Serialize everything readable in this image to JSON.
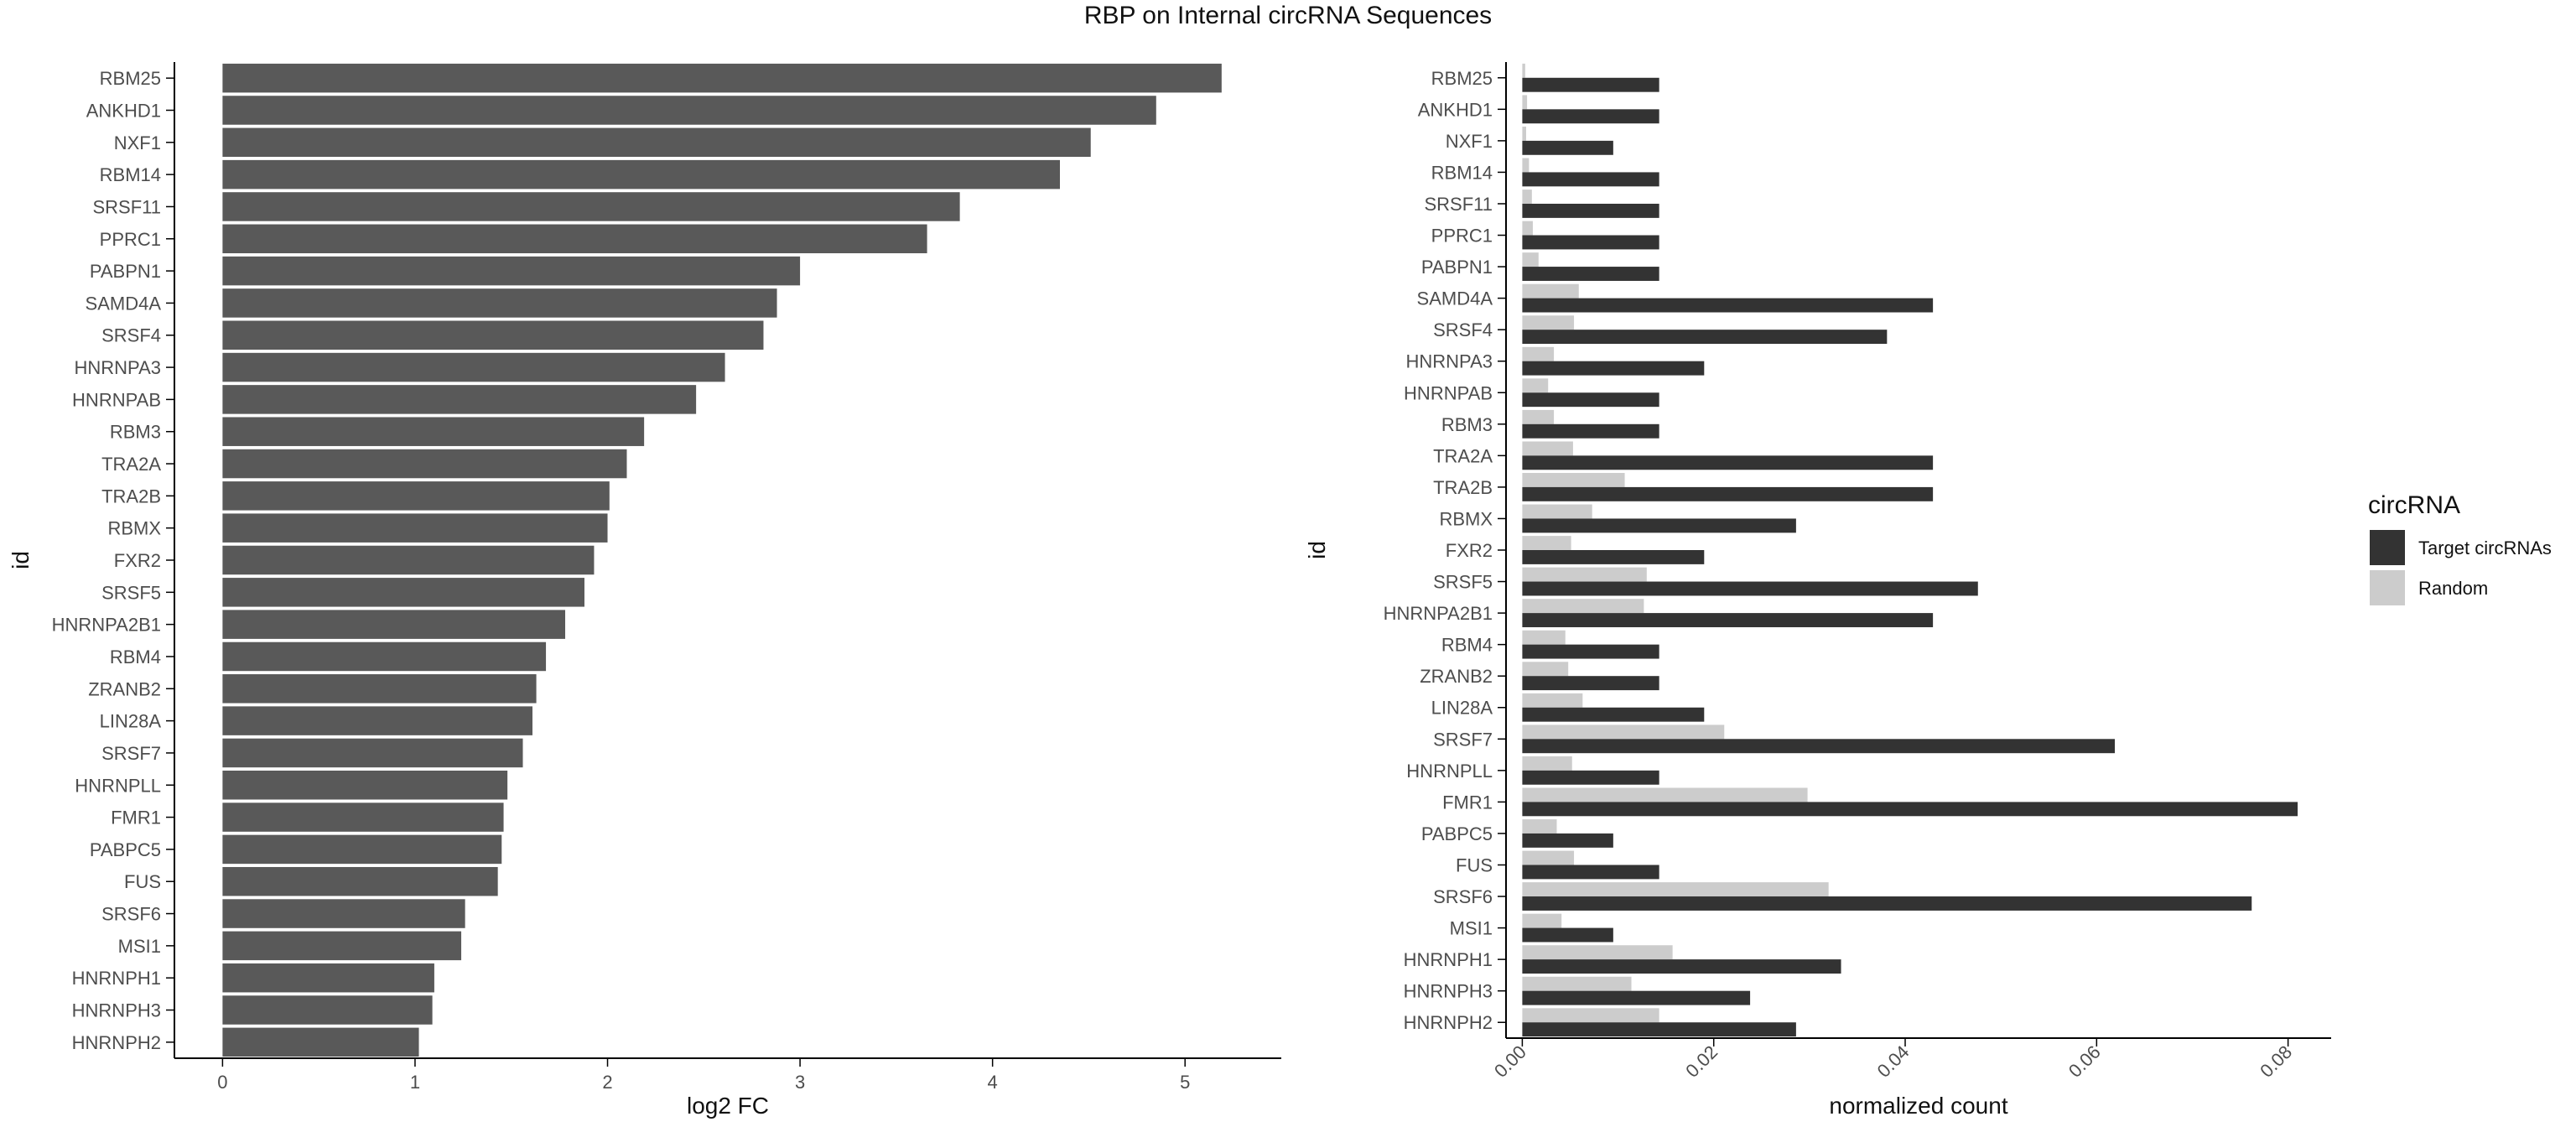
{
  "page": {
    "title": "RBP on Internal circRNA Sequences"
  },
  "colors": {
    "bar_left": "#595959",
    "target": "#333333",
    "random": "#cccccc",
    "axis": "#000000"
  },
  "chart_data": [
    {
      "type": "bar",
      "orientation": "horizontal",
      "categories": [
        "RBM25",
        "ANKHD1",
        "NXF1",
        "RBM14",
        "SRSF11",
        "PPRC1",
        "PABPN1",
        "SAMD4A",
        "SRSF4",
        "HNRNPA3",
        "HNRNPAB",
        "RBM3",
        "TRA2A",
        "TRA2B",
        "RBMX",
        "FXR2",
        "SRSF5",
        "HNRNPA2B1",
        "RBM4",
        "ZRANB2",
        "LIN28A",
        "SRSF7",
        "HNRNPLL",
        "FMR1",
        "PABPC5",
        "FUS",
        "SRSF6",
        "MSI1",
        "HNRNPH1",
        "HNRNPH3",
        "HNRNPH2"
      ],
      "values": [
        5.19,
        4.85,
        4.51,
        4.35,
        3.83,
        3.66,
        3.0,
        2.88,
        2.81,
        2.61,
        2.46,
        2.19,
        2.1,
        2.01,
        2.0,
        1.93,
        1.88,
        1.78,
        1.68,
        1.63,
        1.61,
        1.56,
        1.48,
        1.46,
        1.45,
        1.43,
        1.26,
        1.24,
        1.1,
        1.09,
        1.02
      ],
      "xlabel": "log2 FC",
      "ylabel": "id",
      "xlim": [
        -0.25,
        5.5
      ],
      "xticks": [
        0,
        1,
        2,
        3,
        4,
        5
      ]
    },
    {
      "type": "bar",
      "orientation": "horizontal",
      "categories": [
        "RBM25",
        "ANKHD1",
        "NXF1",
        "RBM14",
        "SRSF11",
        "PPRC1",
        "PABPN1",
        "SAMD4A",
        "SRSF4",
        "HNRNPA3",
        "HNRNPAB",
        "RBM3",
        "TRA2A",
        "TRA2B",
        "RBMX",
        "FXR2",
        "SRSF5",
        "HNRNPA2B1",
        "RBM4",
        "ZRANB2",
        "LIN28A",
        "SRSF7",
        "HNRNPLL",
        "FMR1",
        "PABPC5",
        "FUS",
        "SRSF6",
        "MSI1",
        "HNRNPH1",
        "HNRNPH3",
        "HNRNPH2"
      ],
      "series": [
        {
          "name": "Target circRNAs",
          "values": [
            0.0143,
            0.0143,
            0.0095,
            0.0143,
            0.0143,
            0.0143,
            0.0143,
            0.0429,
            0.0381,
            0.019,
            0.0143,
            0.0143,
            0.0429,
            0.0429,
            0.0286,
            0.019,
            0.0476,
            0.0429,
            0.0143,
            0.0143,
            0.019,
            0.0619,
            0.0143,
            0.081,
            0.0095,
            0.0143,
            0.0762,
            0.0095,
            0.0333,
            0.0238,
            0.0286
          ]
        },
        {
          "name": "Random",
          "values": [
            0.0003,
            0.0005,
            0.0004,
            0.0007,
            0.001,
            0.0011,
            0.0017,
            0.0059,
            0.0054,
            0.0033,
            0.0027,
            0.0033,
            0.0053,
            0.0107,
            0.0073,
            0.0051,
            0.013,
            0.0127,
            0.0045,
            0.0048,
            0.0063,
            0.0211,
            0.0052,
            0.0298,
            0.0036,
            0.0054,
            0.032,
            0.0041,
            0.0157,
            0.0114,
            0.0143
          ]
        }
      ],
      "xlabel": "normalized count",
      "ylabel": "id",
      "xlim": [
        -0.0017,
        0.0845
      ],
      "xticks": [
        0.0,
        0.02,
        0.04,
        0.06,
        0.08
      ],
      "xtick_labels": [
        "0.00",
        "0.02",
        "0.04",
        "0.06",
        "0.08"
      ],
      "legend": {
        "title": "circRNA",
        "entries": [
          "Target circRNAs",
          "Random"
        ],
        "position": "right"
      }
    }
  ]
}
